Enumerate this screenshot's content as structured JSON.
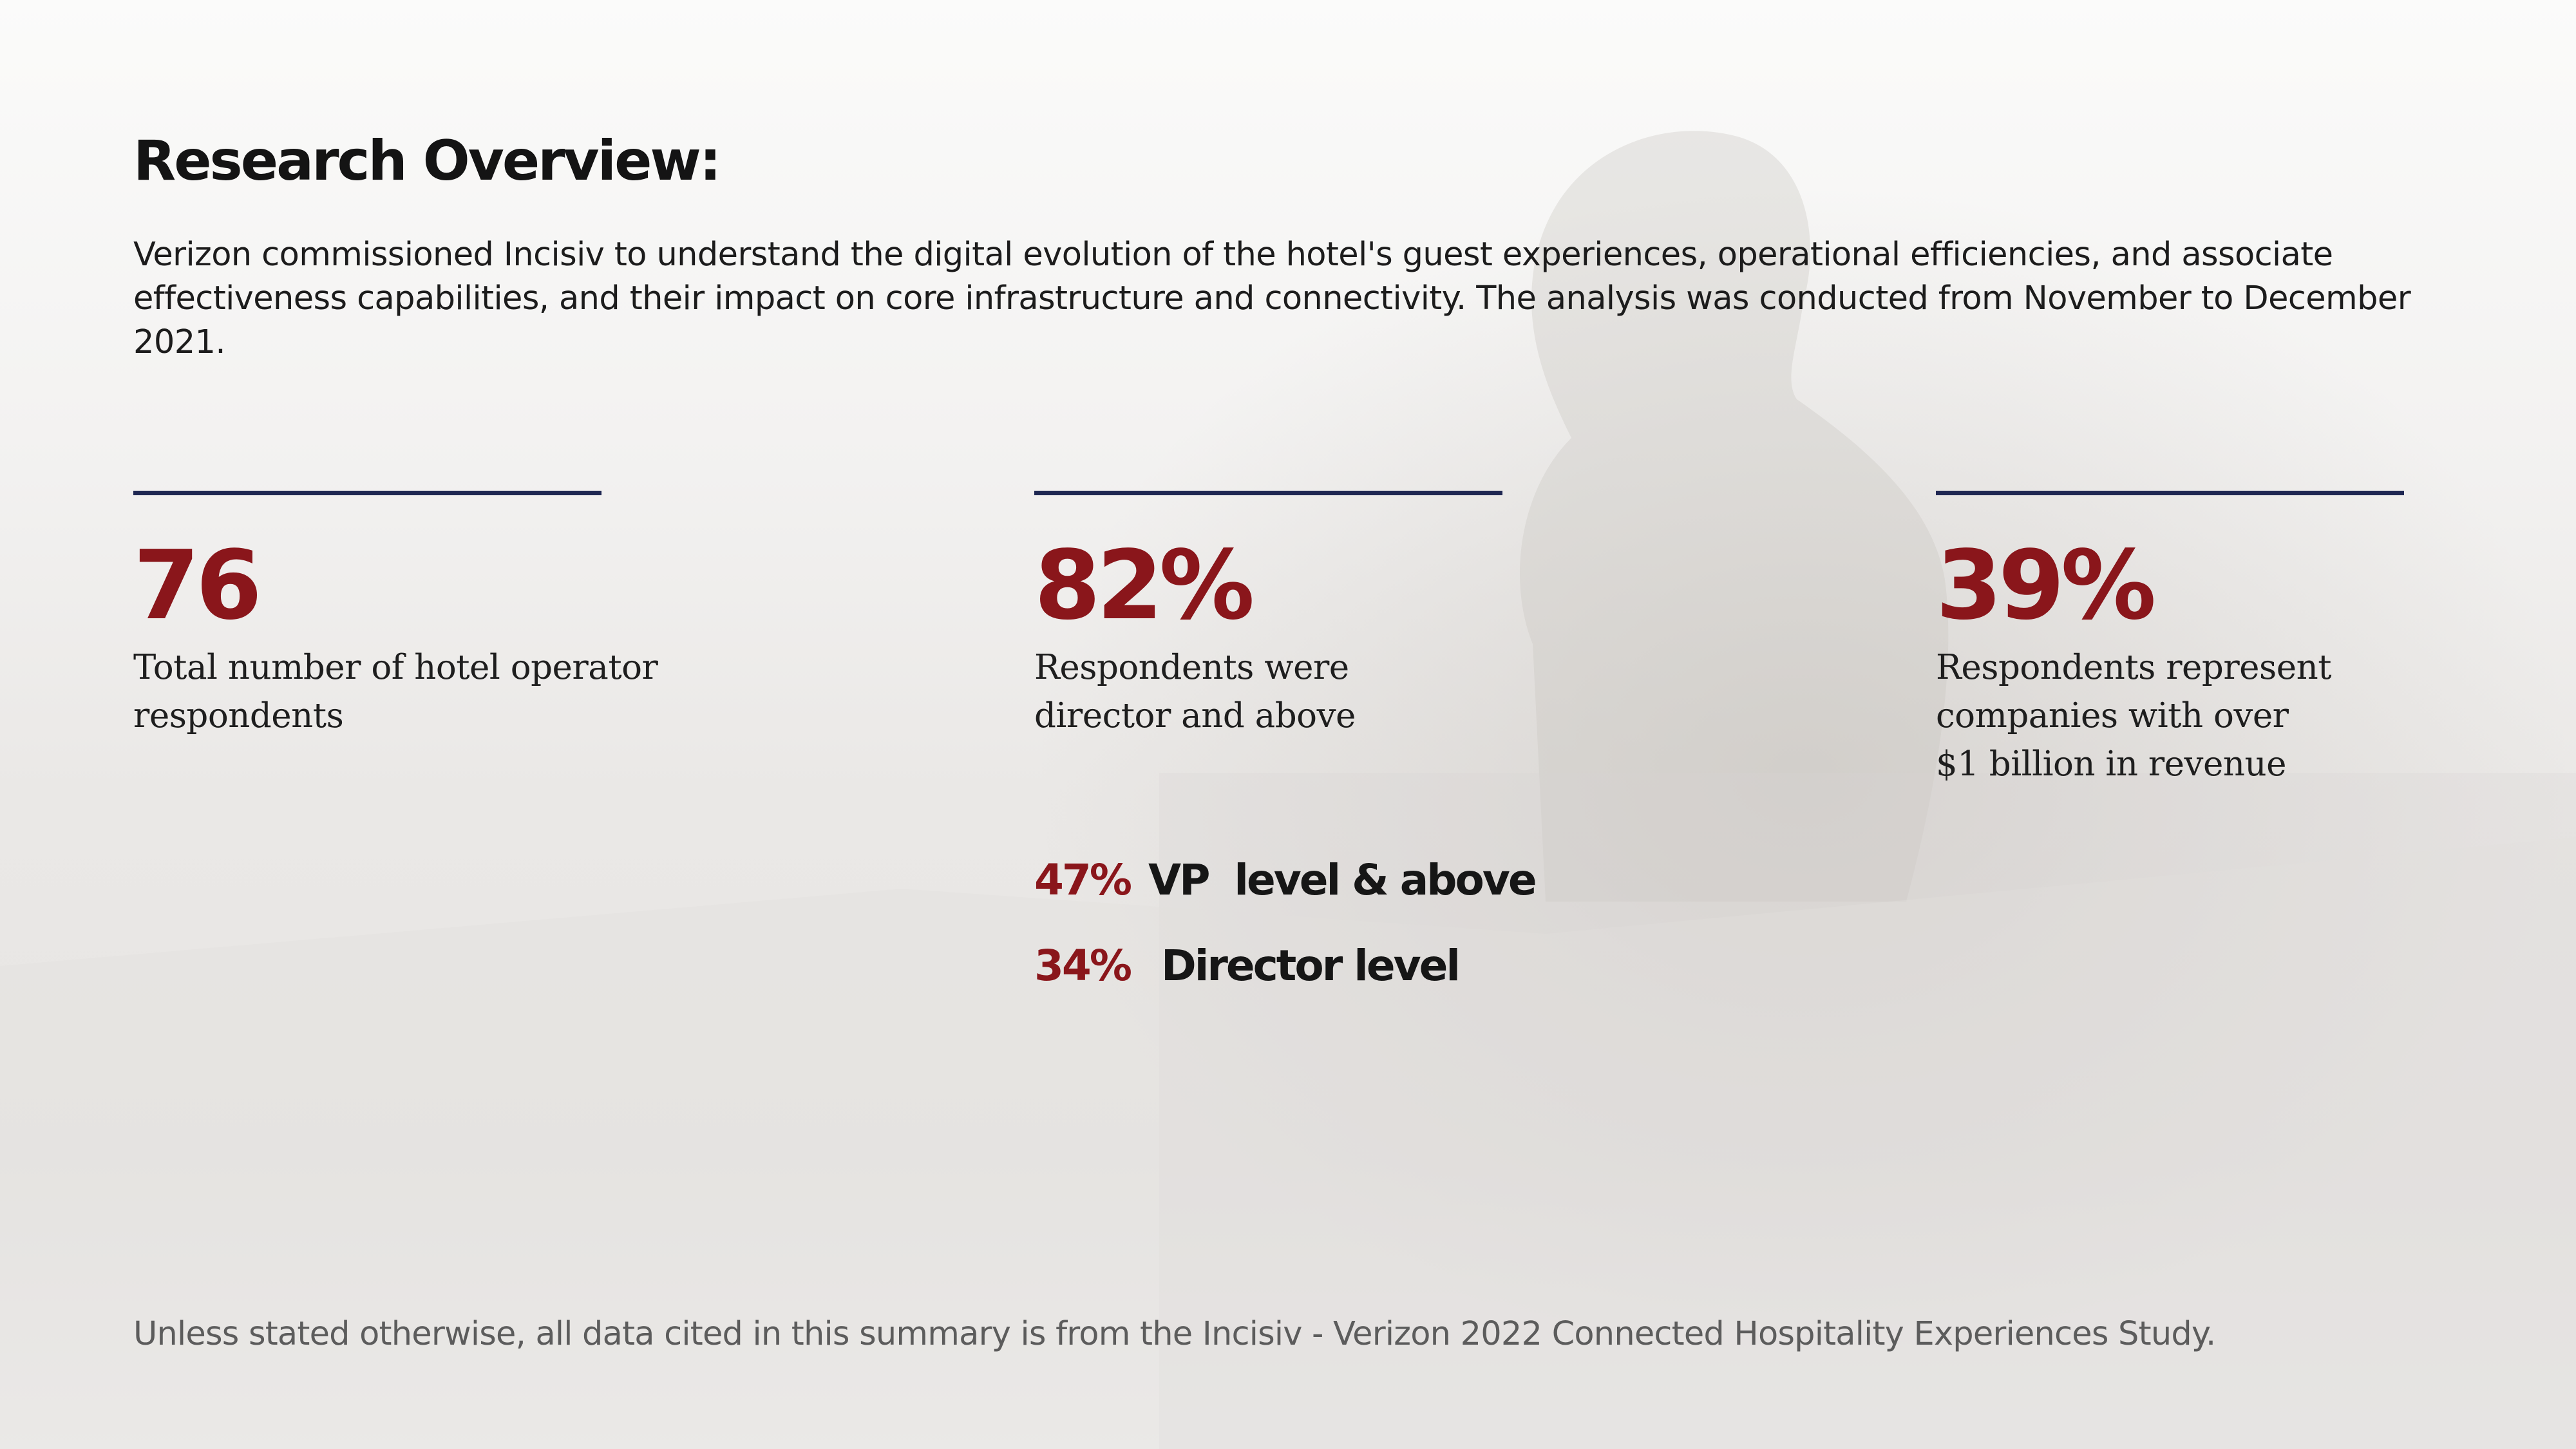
{
  "title": "Research Overview:",
  "intro": {
    "lines": [
      "Verizon commissioned Incisiv to understand the digital evolution of the hotel's guest experiences, operational efficiencies, and associate",
      "effectiveness capabilities, and their impact on core infrastructure and connectivity. The analysis was conducted from November to December",
      "2021."
    ]
  },
  "stats": [
    {
      "value": "76",
      "description": [
        "Total number of hotel operator",
        "respondents"
      ]
    },
    {
      "value": "82%",
      "description": [
        "Respondents were",
        "director and above"
      ],
      "breakdown": [
        {
          "percent": "47%",
          "label": "VP  level & above"
        },
        {
          "percent": "34%",
          "label": " Director level"
        }
      ]
    },
    {
      "value": "39%",
      "description": [
        "Respondents represent",
        "companies with over",
        "$1 billion in revenue"
      ]
    }
  ],
  "footnote": "Unless stated otherwise, all data cited in this summary is from the Incisiv - Verizon 2022 Connected Hospitality Experiences Study.",
  "colors": {
    "accent": "#8a161b",
    "rule": "#1f2752",
    "text": "#1a1a1a",
    "footnote": "#5c5c5c"
  }
}
